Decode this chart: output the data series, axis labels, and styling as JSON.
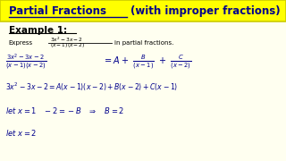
{
  "bg_color": "#fffff0",
  "title_bg": "#ffff00",
  "title_text": "Partial Fractions",
  "title_extra": " (with improper fractions)",
  "text_color": "#00008B",
  "example_color": "#000000"
}
